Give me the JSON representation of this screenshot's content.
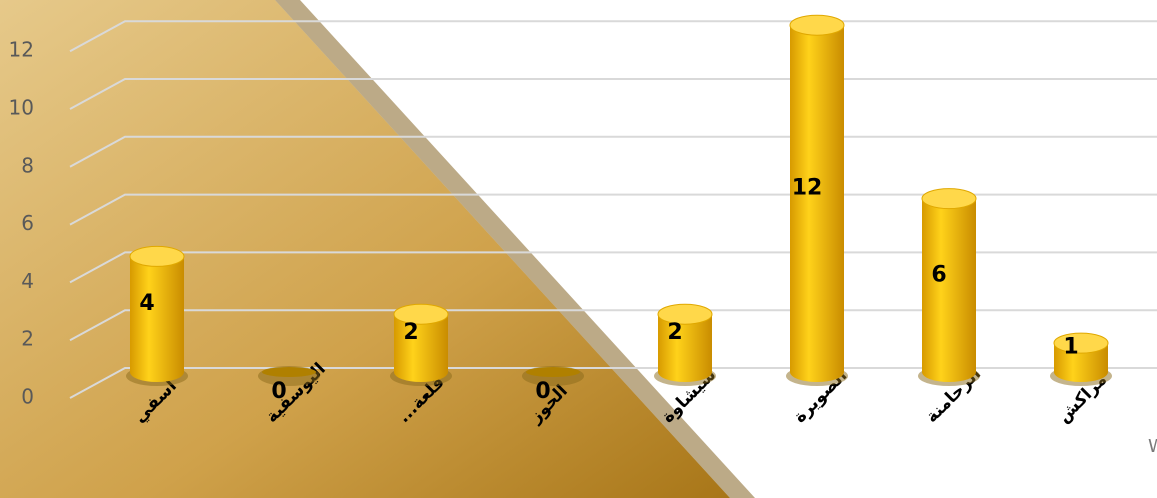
{
  "chart_data": {
    "type": "bar",
    "categories": [
      "اسفي",
      "اليوسفية",
      "قلعة...",
      "الحوز",
      "شيشاوة",
      "الصويرة",
      "الرحامنة",
      "مراكش"
    ],
    "values": [
      4,
      0,
      2,
      0,
      2,
      12,
      6,
      1
    ],
    "color": "#f2bc00",
    "ylim": [
      0,
      14
    ],
    "yticks": [
      0,
      2,
      4,
      6,
      8,
      10,
      12
    ],
    "grid": true,
    "clipped_text": "W"
  }
}
